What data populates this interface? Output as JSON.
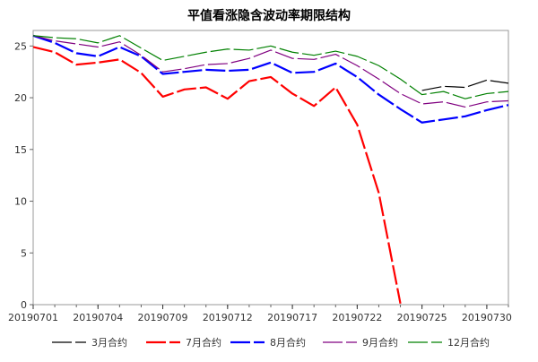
{
  "chart_data": {
    "type": "line",
    "title": "平值看涨隐含波动率期限结构",
    "xlabel": "",
    "ylabel": "",
    "ylim": [
      0,
      26.5
    ],
    "yticks": [
      0,
      5,
      10,
      15,
      20,
      25
    ],
    "grid": false,
    "legend_position": "bottom",
    "x": [
      "20190701",
      "20190702",
      "20190703",
      "20190704",
      "20190705",
      "20190708",
      "20190709",
      "20190710",
      "20190711",
      "20190712",
      "20190715",
      "20190716",
      "20190717",
      "20190718",
      "20190719",
      "20190722",
      "20190723",
      "20190724",
      "20190725",
      "20190726",
      "20190729",
      "20190730",
      "20190731"
    ],
    "xtick_labels": [
      "20190701",
      "20190704",
      "20190709",
      "20190712",
      "20190717",
      "20190722",
      "20190725",
      "20190730"
    ],
    "series": [
      {
        "name": "3月合约",
        "color": "#000000",
        "dash": "long",
        "values": [
          null,
          null,
          null,
          null,
          null,
          null,
          null,
          null,
          null,
          null,
          null,
          null,
          null,
          null,
          null,
          null,
          null,
          null,
          20.7,
          21.1,
          21.0,
          21.7,
          21.4
        ]
      },
      {
        "name": "7月合约",
        "color": "#ff0000",
        "dash": "long",
        "values": [
          24.9,
          24.4,
          23.2,
          23.4,
          23.7,
          22.4,
          20.1,
          20.8,
          21.0,
          19.9,
          21.6,
          22.0,
          20.4,
          19.2,
          21.0,
          17.4,
          10.8,
          0.1,
          null,
          null,
          null,
          null,
          null
        ]
      },
      {
        "name": "8月合约",
        "color": "#0000ff",
        "dash": "long",
        "values": [
          26.0,
          25.3,
          24.3,
          24.0,
          24.9,
          24.0,
          22.3,
          22.5,
          22.7,
          22.6,
          22.7,
          23.4,
          22.4,
          22.5,
          23.3,
          22.0,
          20.3,
          18.9,
          17.6,
          17.9,
          18.2,
          18.8,
          19.3
        ]
      },
      {
        "name": "9月合约",
        "color": "#800080",
        "dash": "long",
        "values": [
          26.0,
          25.5,
          25.2,
          24.9,
          25.4,
          24.1,
          22.5,
          22.8,
          23.2,
          23.3,
          23.8,
          24.6,
          23.8,
          23.7,
          24.2,
          23.1,
          21.8,
          20.4,
          19.4,
          19.6,
          19.1,
          19.6,
          19.7
        ]
      },
      {
        "name": "12月合约",
        "color": "#008000",
        "dash": "long",
        "values": [
          26.0,
          25.8,
          25.7,
          25.3,
          26.0,
          24.8,
          23.6,
          24.0,
          24.4,
          24.7,
          24.6,
          25.0,
          24.4,
          24.1,
          24.5,
          24.0,
          23.1,
          21.8,
          20.3,
          20.6,
          19.9,
          20.4,
          20.6
        ]
      }
    ]
  }
}
